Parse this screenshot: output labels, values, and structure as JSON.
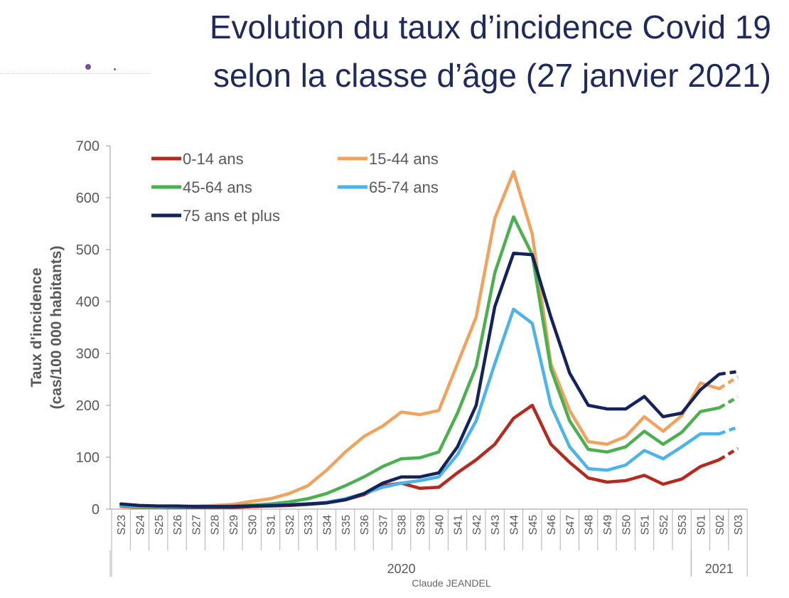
{
  "slide": {
    "title_line1": "Evolution du taux d’incidence Covid 19",
    "title_line2": "selon la classe d’âge (27 janvier 2021)",
    "footer": "Claude JEANDEL"
  },
  "chart_data": {
    "type": "line",
    "title": "Evolution du taux d’incidence Covid 19 selon la classe d’âge (27 janvier 2021)",
    "ylabel_line1": "Taux d'incidence",
    "ylabel_line2": "(cas/100 000 habitants)",
    "xlabel": "",
    "ylim": [
      0,
      700
    ],
    "yticks": [
      0,
      100,
      200,
      300,
      400,
      500,
      600,
      700
    ],
    "grid": false,
    "legend_position": "top-left",
    "categories": [
      "S23",
      "S24",
      "S25",
      "S26",
      "S27",
      "S28",
      "S29",
      "S30",
      "S31",
      "S32",
      "S33",
      "S34",
      "S35",
      "S36",
      "S37",
      "S38",
      "S39",
      "S40",
      "S41",
      "S42",
      "S43",
      "S44",
      "S45",
      "S46",
      "S47",
      "S48",
      "S49",
      "S50",
      "S51",
      "S52",
      "S53",
      "S01",
      "S02",
      "S03"
    ],
    "year_groups": [
      {
        "label": "2020",
        "from": 0,
        "to": 30
      },
      {
        "label": "2021",
        "from": 31,
        "to": 33
      }
    ],
    "dashed_from_index": 32,
    "series": [
      {
        "name": "0-14 ans",
        "color": "#b52a1f",
        "values": [
          5,
          3,
          3,
          3,
          3,
          3,
          3,
          5,
          6,
          7,
          9,
          12,
          18,
          28,
          45,
          50,
          40,
          42,
          70,
          95,
          125,
          175,
          200,
          125,
          90,
          60,
          52,
          55,
          65,
          48,
          58,
          82,
          95,
          117
        ]
      },
      {
        "name": "15-44 ans",
        "color": "#f0a35e",
        "values": [
          5,
          4,
          4,
          5,
          6,
          7,
          9,
          15,
          20,
          30,
          45,
          75,
          110,
          140,
          160,
          187,
          182,
          190,
          280,
          370,
          560,
          650,
          530,
          280,
          190,
          130,
          125,
          140,
          178,
          150,
          180,
          243,
          232,
          255
        ]
      },
      {
        "name": "45-64 ans",
        "color": "#4caf50",
        "values": [
          6,
          5,
          5,
          5,
          5,
          5,
          6,
          8,
          10,
          14,
          20,
          30,
          45,
          62,
          82,
          97,
          99,
          110,
          185,
          275,
          455,
          563,
          490,
          270,
          170,
          115,
          110,
          120,
          150,
          125,
          148,
          188,
          195,
          216
        ]
      },
      {
        "name": "65-74 ans",
        "color": "#4db3e8",
        "values": [
          8,
          6,
          5,
          5,
          5,
          5,
          5,
          6,
          8,
          9,
          10,
          13,
          20,
          30,
          42,
          50,
          55,
          62,
          105,
          170,
          280,
          385,
          358,
          200,
          120,
          78,
          75,
          85,
          113,
          97,
          120,
          145,
          145,
          158
        ]
      },
      {
        "name": "75 ans et plus",
        "color": "#14235a",
        "values": [
          10,
          7,
          6,
          6,
          5,
          5,
          5,
          6,
          7,
          8,
          10,
          12,
          18,
          30,
          50,
          62,
          62,
          70,
          120,
          200,
          390,
          493,
          490,
          370,
          262,
          200,
          193,
          193,
          217,
          178,
          185,
          230,
          260,
          265
        ]
      }
    ]
  }
}
